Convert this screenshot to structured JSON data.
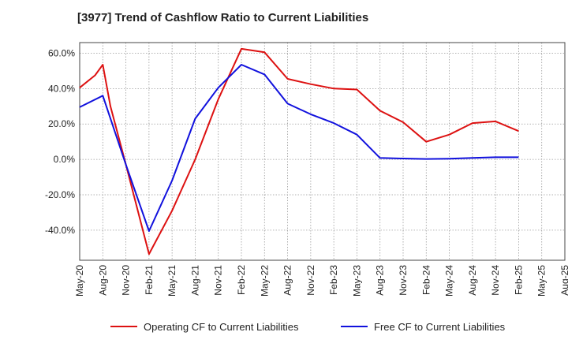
{
  "chart_data": {
    "type": "line",
    "title": "[3977]  Trend of Cashflow Ratio to Current Liabilities",
    "xlabel": "",
    "ylabel": "",
    "x_tick_labels": [
      "May-20",
      "Aug-20",
      "Nov-20",
      "Feb-21",
      "May-21",
      "Aug-21",
      "Nov-21",
      "Feb-22",
      "May-22",
      "Aug-22",
      "Nov-22",
      "Feb-23",
      "May-23",
      "Aug-23",
      "Nov-23",
      "Feb-24",
      "May-24",
      "Aug-24",
      "Nov-24",
      "Feb-25",
      "May-25",
      "Aug-25"
    ],
    "y_tick_labels": [
      "60.0%",
      "40.0%",
      "20.0%",
      "0.0%",
      "-20.0%",
      "-40.0%"
    ],
    "y_ticks": [
      60,
      40,
      20,
      0,
      -20,
      -40
    ],
    "ylim": [
      -57,
      66
    ],
    "grid": true,
    "legend_position": "bottom",
    "series": [
      {
        "name": "Operating CF to Current Liabilities",
        "color": "#dd1111",
        "x": [
          "May-20",
          "Jul-20",
          "Aug-20",
          "Sep-20",
          "Nov-20",
          "Feb-21",
          "May-21",
          "Aug-21",
          "Nov-21",
          "Feb-22",
          "May-22",
          "Aug-22",
          "Nov-22",
          "Feb-23",
          "May-23",
          "Aug-23",
          "Nov-23",
          "Feb-24",
          "May-24",
          "Aug-24",
          "Nov-24",
          "Feb-25"
        ],
        "values": [
          40.5,
          47.5,
          53.5,
          30.0,
          -3.0,
          -53.5,
          -29.0,
          0.0,
          34.0,
          62.5,
          60.5,
          45.5,
          42.5,
          40.0,
          39.5,
          27.5,
          21.0,
          10.0,
          14.0,
          20.5,
          21.5,
          16.0
        ]
      },
      {
        "name": "Free CF to Current Liabilities",
        "color": "#1111dd",
        "x": [
          "May-20",
          "Aug-20",
          "Nov-20",
          "Feb-21",
          "May-21",
          "Aug-21",
          "Nov-21",
          "Feb-22",
          "May-22",
          "Aug-22",
          "Nov-22",
          "Feb-23",
          "May-23",
          "Aug-23",
          "Nov-23",
          "Feb-24",
          "May-24",
          "Aug-24",
          "Nov-24",
          "Feb-25"
        ],
        "values": [
          29.5,
          36.0,
          -3.0,
          -40.5,
          -12.0,
          23.0,
          40.5,
          53.5,
          48.0,
          31.5,
          25.5,
          20.5,
          14.0,
          0.8,
          0.5,
          0.2,
          0.4,
          0.8,
          1.2,
          1.2
        ]
      }
    ]
  }
}
